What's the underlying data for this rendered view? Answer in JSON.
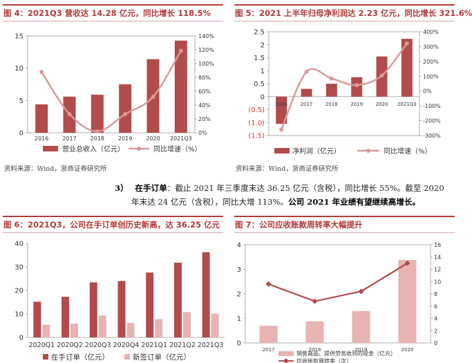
{
  "fig4": {
    "title": "图 4：2021Q3 营收达 14.28 亿元，同比增长 118.5%",
    "source": "资料来源：Wind，浙商证券研究所"
  },
  "fig5": {
    "title": "图 5：2021 上半年归母净利润达 2.23 亿元，同比增长 321.6%",
    "source": "资料来源：Wind，浙商证券研究所"
  },
  "paragraph": {
    "number": "3）",
    "label": "在手订单",
    "line1_text": "：截止 2021 年三季度末达 36.25 亿元（含税），同比增长 55%。截至 2020",
    "line2_text": "年末达 24 亿元（含税），同比大增 113%。",
    "line2_bold": "公司 2021 年业绩有望继续高增长。"
  },
  "fig6": {
    "title": "图 6：2021Q3，公司在手订单创历史新高，达 36.25 亿元"
  },
  "fig7": {
    "title": "图 7：公司应收账款周转率大幅提升"
  },
  "colors": {
    "bar": "#b24b4b",
    "line": "#d99a9a",
    "bar_light": "#e8b3b3"
  },
  "chart_data": [
    {
      "id": "fig4",
      "type": "bar+line",
      "categories": [
        "2016",
        "2017",
        "2018",
        "2019",
        "2020",
        "2021Q3"
      ],
      "series": [
        {
          "name": "营业总收入（亿元）",
          "type": "bar",
          "axis": "left",
          "values": [
            4.4,
            5.6,
            5.9,
            7.5,
            11.4,
            14.28
          ]
        },
        {
          "name": "同比增速（%）",
          "type": "line",
          "axis": "right",
          "values": [
            88,
            27,
            2,
            27,
            52,
            118.5
          ]
        }
      ],
      "left_axis": {
        "ticks": [
          0,
          5,
          10,
          15
        ],
        "ylim": [
          0,
          15
        ]
      },
      "right_axis": {
        "ticks": [
          "0%",
          "20%",
          "40%",
          "60%",
          "80%",
          "100%",
          "120%",
          "140%"
        ],
        "ylim": [
          0,
          140
        ]
      }
    },
    {
      "id": "fig5",
      "type": "bar+line",
      "categories": [
        "2016",
        "2017",
        "2018",
        "2019",
        "2020",
        "2021Q3"
      ],
      "series": [
        {
          "name": "净利润（亿元）",
          "type": "bar",
          "axis": "left",
          "values": [
            -1.05,
            0.3,
            0.5,
            0.75,
            1.55,
            2.23
          ]
        },
        {
          "name": "同比增速（%）",
          "type": "line",
          "axis": "right",
          "values": [
            -260,
            130,
            85,
            40,
            105,
            321.6
          ]
        }
      ],
      "left_axis": {
        "ticks": [
          "(1.5)",
          "(1.0)",
          "(0.5)",
          "0",
          "0.5",
          "1",
          "1.5",
          "2",
          "2.5"
        ],
        "ylim": [
          -1.5,
          2.5
        ]
      },
      "right_axis": {
        "ticks": [
          "-300%",
          "-200%",
          "-100%",
          "0%",
          "100%",
          "200%",
          "300%",
          "400%"
        ],
        "ylim": [
          -300,
          400
        ]
      }
    },
    {
      "id": "fig6",
      "type": "bar",
      "categories": [
        "2020Q1",
        "2020Q2",
        "2020Q3",
        "2020Q4",
        "2021Q1",
        "2021Q2",
        "2021Q3"
      ],
      "series": [
        {
          "name": "在手订单（亿元）",
          "values": [
            15.2,
            17.3,
            23.4,
            24,
            27.6,
            31.8,
            36.25
          ]
        },
        {
          "name": "新签订单（亿元）",
          "values": [
            5.4,
            5.9,
            9.3,
            6.2,
            7.8,
            10.8,
            10.1
          ]
        }
      ],
      "left_axis": {
        "ticks": [
          0,
          10,
          20,
          30,
          40
        ],
        "ylim": [
          0,
          40
        ]
      }
    },
    {
      "id": "fig7",
      "type": "bar+line",
      "categories": [
        "2017",
        "2018",
        "2019",
        "2020"
      ],
      "series": [
        {
          "name": "销售商品、提供劳务收到的现金（亿元）",
          "type": "bar",
          "axis": "left",
          "values": [
            0.7,
            0.88,
            1.3,
            3.38
          ]
        },
        {
          "name": "应收账款周转率（次）",
          "type": "line",
          "axis": "right",
          "values": [
            9.6,
            6.8,
            8.4,
            13
          ]
        }
      ],
      "left_axis": {
        "ticks": [
          0,
          1,
          2,
          3,
          4
        ],
        "ylim": [
          0,
          4
        ]
      },
      "right_axis": {
        "ticks": [
          0,
          2,
          4,
          6,
          8,
          10,
          12,
          14,
          16
        ],
        "ylim": [
          0,
          16
        ]
      }
    }
  ]
}
